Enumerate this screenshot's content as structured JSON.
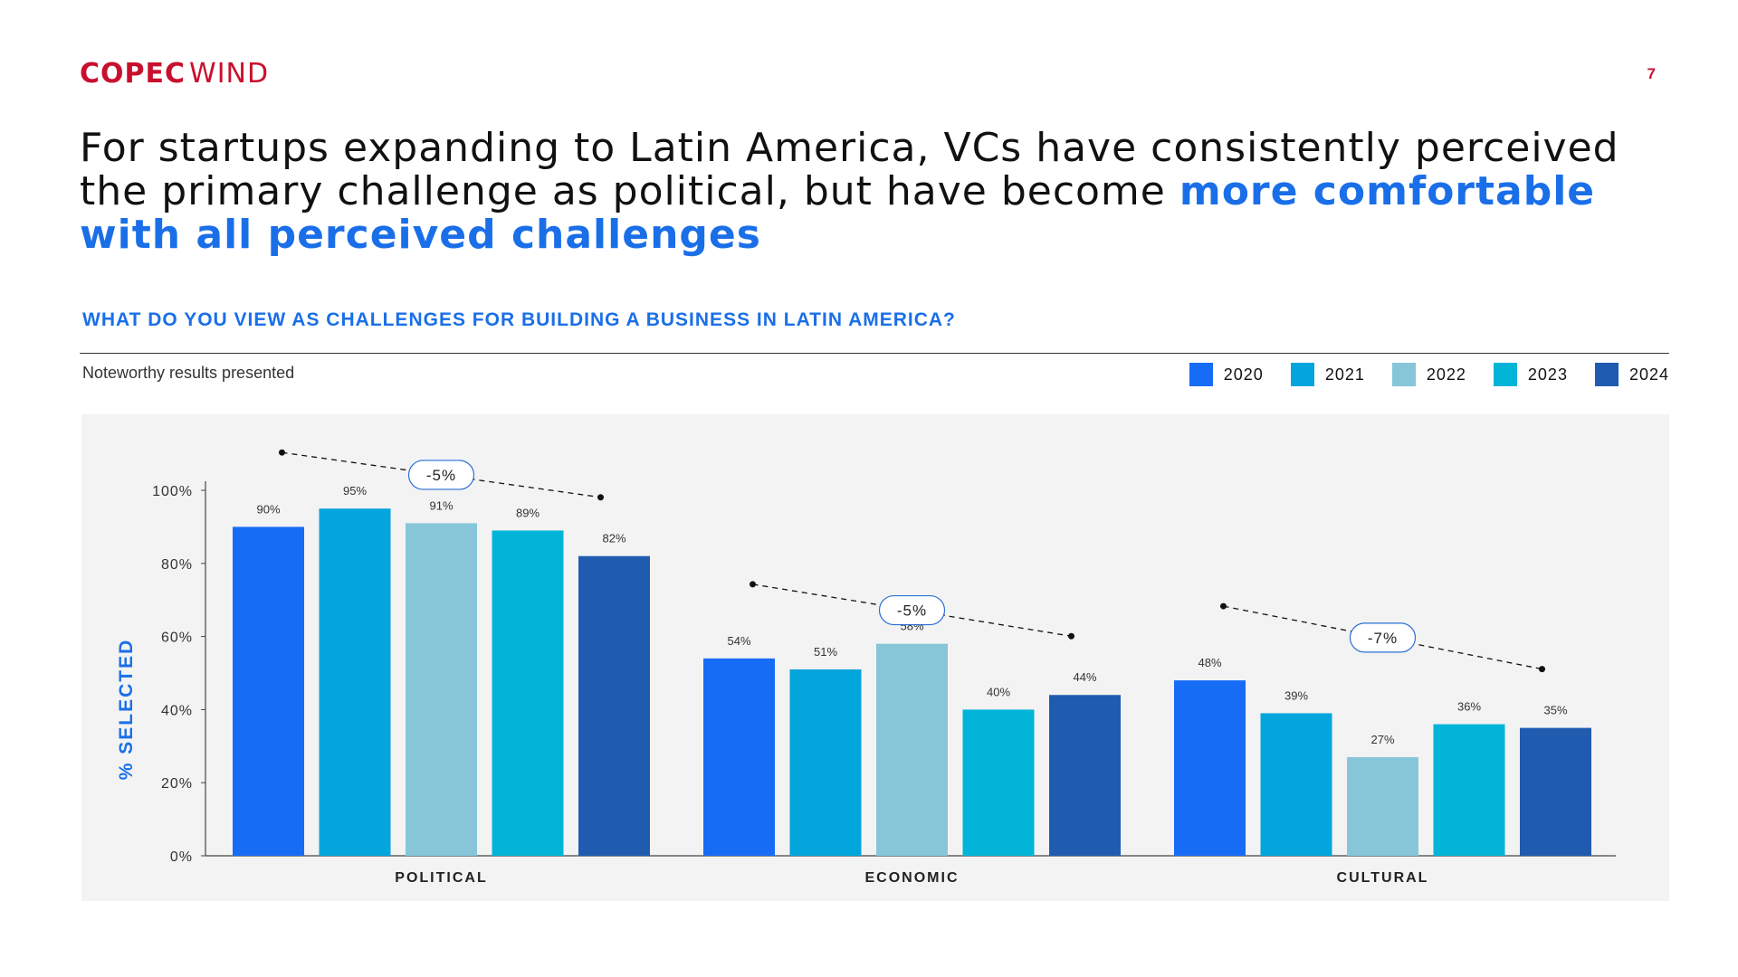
{
  "header": {
    "logo_bold": "COPEC",
    "logo_light": "WIND",
    "page_number": "7",
    "brand_color": "#c8102e"
  },
  "headline": {
    "plain": "For startups expanding to Latin America, VCs have consistently perceived the primary challenge as political, but have become ",
    "highlight": "more comfortable with all perceived challenges",
    "highlight_color": "#1a6fe8"
  },
  "question": "WHAT DO YOU VIEW AS CHALLENGES FOR BUILDING A BUSINESS IN LATIN AMERICA?",
  "subnote": "Noteworthy results presented",
  "chart_data": {
    "type": "bar",
    "categories": [
      "POLITICAL",
      "ECONOMIC",
      "CULTURAL"
    ],
    "series": [
      {
        "name": "2020",
        "color": "#176cf6",
        "values": [
          90,
          54,
          48
        ]
      },
      {
        "name": "2021",
        "color": "#03a5dd",
        "values": [
          95,
          51,
          39
        ]
      },
      {
        "name": "2022",
        "color": "#86c6d8",
        "values": [
          91,
          58,
          27
        ]
      },
      {
        "name": "2023",
        "color": "#02b4d8",
        "values": [
          89,
          40,
          36
        ]
      },
      {
        "name": "2024",
        "color": "#1f5cb0",
        "values": [
          82,
          44,
          35
        ]
      }
    ],
    "ylabel": "% SELECTED",
    "ylim": [
      0,
      100
    ],
    "yticks": [
      0,
      20,
      40,
      60,
      80,
      100
    ],
    "ytick_labels": [
      "0%",
      "20%",
      "40%",
      "60%",
      "80%",
      "100%"
    ],
    "value_suffix": "%",
    "annotations": [
      "-5%",
      "-5%",
      "-7%"
    ],
    "legend_position": "top-right",
    "grid": false
  }
}
